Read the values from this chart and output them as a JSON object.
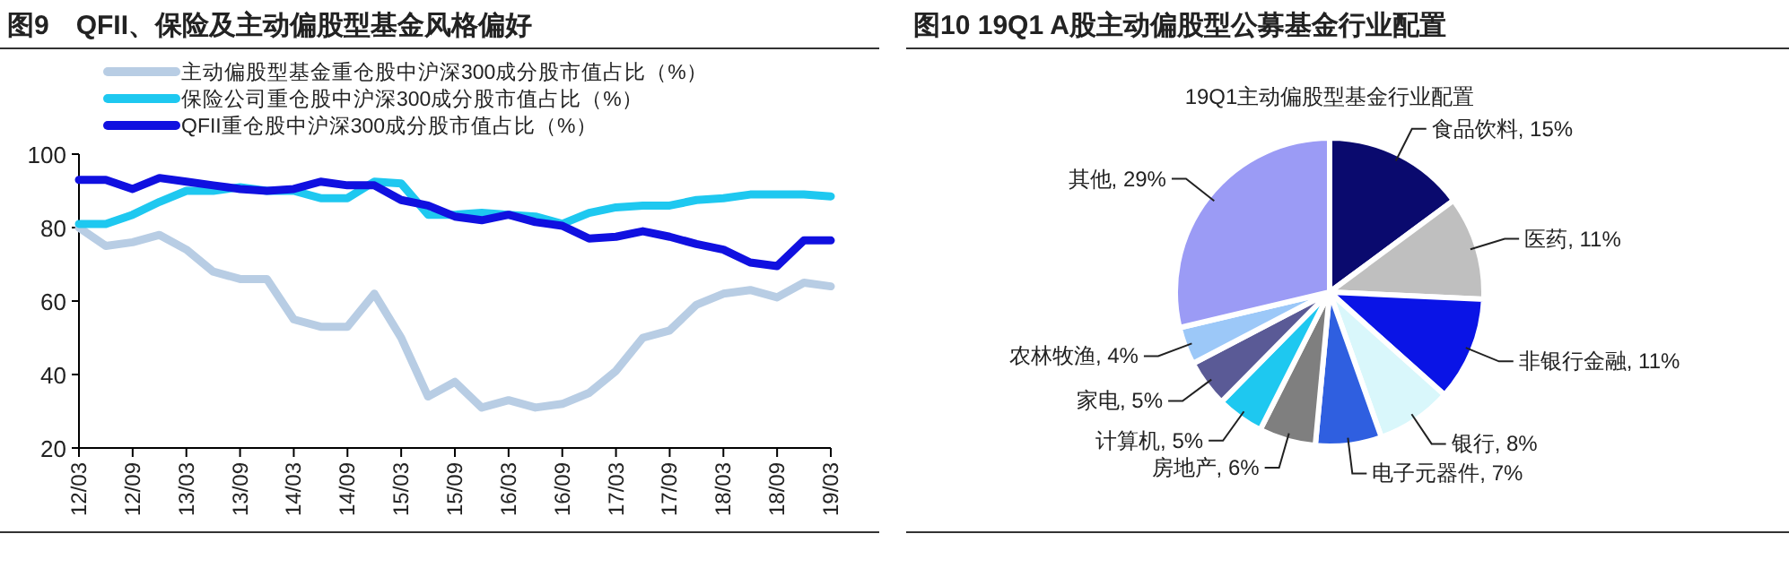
{
  "chart_data": [
    {
      "type": "line",
      "title": "图9　QFII、保险及主动偏股型基金风格偏好",
      "categories": [
        "12/03",
        null,
        "12/09",
        null,
        "13/03",
        null,
        "13/09",
        null,
        "14/03",
        null,
        "14/09",
        null,
        "15/03",
        null,
        "15/09",
        null,
        "16/03",
        null,
        "16/09",
        null,
        "17/03",
        null,
        "17/09",
        null,
        "18/03",
        null,
        "18/09",
        null,
        "19/03"
      ],
      "series": [
        {
          "name": "主动偏股型基金重仓股中沪深300成分股市值占比（%）",
          "color": "#b8cde4",
          "values": [
            80,
            75,
            76,
            78,
            74,
            68,
            66,
            66,
            55,
            53,
            53,
            62,
            50,
            34,
            38,
            31,
            33,
            31,
            32,
            35,
            41,
            50,
            52,
            59,
            62,
            63,
            61,
            65,
            64
          ]
        },
        {
          "name": "保险公司重仓股中沪深300成分股市值占比（%）",
          "color": "#1ec8f0",
          "values": [
            81,
            81,
            83.5,
            87,
            90,
            90,
            91,
            90,
            90,
            88,
            88,
            92.5,
            92,
            83.5,
            83.5,
            84,
            83.5,
            83,
            81,
            84,
            85.5,
            86,
            86,
            87.5,
            88,
            89,
            89,
            89,
            88.5
          ]
        },
        {
          "name": "QFII重仓股中沪深300成分股市值占比（%）",
          "color": "#1010e0",
          "values": [
            93,
            93,
            90.5,
            93.5,
            92.5,
            91.5,
            90.5,
            90,
            90.5,
            92.5,
            91.5,
            91.5,
            87.5,
            86,
            83,
            82,
            83.5,
            81.5,
            80.5,
            77,
            77.5,
            79,
            77.5,
            75.5,
            74,
            70.5,
            69.5,
            76.5,
            76.5
          ]
        }
      ],
      "ylim": [
        20,
        100
      ],
      "yticks": [
        20,
        40,
        60,
        80,
        100
      ],
      "grid": false,
      "legend": "top left"
    },
    {
      "type": "pie",
      "title": "图10 19Q1 A股主动偏股型公募基金行业配置",
      "subtitle": "19Q1主动偏股型基金行业配置",
      "categories": [
        "食品饮料",
        "医药",
        "非银行金融",
        "银行",
        "电子元器件",
        "房地产",
        "计算机",
        "家电",
        "农林牧渔",
        "其他"
      ],
      "values": [
        15,
        11,
        11,
        8,
        7,
        6,
        5,
        5,
        4,
        29
      ],
      "value_labels": [
        "15%",
        "11%",
        "11%",
        "8%",
        "7%",
        "6%",
        "5%",
        "5%",
        "4%",
        "29%"
      ],
      "colors": [
        "#0a0a6e",
        "#bfbfbf",
        "#0a14e6",
        "#d9f7fb",
        "#2f5fe0",
        "#7f7f7f",
        "#1ec8f0",
        "#5a5a96",
        "#9cc8f8",
        "#9b9bf5"
      ]
    }
  ]
}
